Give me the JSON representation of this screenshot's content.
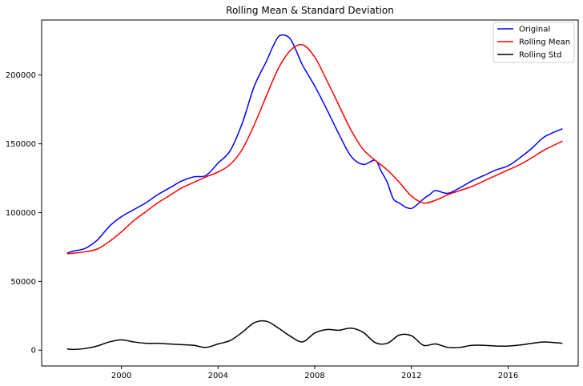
{
  "chart_data": {
    "type": "line",
    "title": "Rolling Mean & Standard Deviation",
    "xlabel": "",
    "ylabel": "",
    "xlim": [
      1996.7,
      2018.9
    ],
    "ylim": [
      -11500,
      240000
    ],
    "xticks": [
      2000,
      2004,
      2008,
      2012,
      2016
    ],
    "yticks": [
      0,
      50000,
      100000,
      150000,
      200000
    ],
    "grid": false,
    "legend_position": "top-right",
    "series": [
      {
        "name": "Original",
        "color": "#0000ff",
        "points": [
          [
            1997.75,
            70500
          ],
          [
            1998.0,
            72000
          ],
          [
            1998.5,
            74000
          ],
          [
            1999.0,
            80000
          ],
          [
            1999.5,
            90000
          ],
          [
            2000.0,
            97000
          ],
          [
            2000.5,
            102000
          ],
          [
            2001.0,
            107000
          ],
          [
            2001.5,
            113000
          ],
          [
            2002.0,
            118000
          ],
          [
            2002.5,
            123000
          ],
          [
            2003.0,
            126000
          ],
          [
            2003.5,
            127000
          ],
          [
            2004.0,
            136000
          ],
          [
            2004.5,
            145000
          ],
          [
            2005.0,
            165000
          ],
          [
            2005.5,
            192000
          ],
          [
            2006.0,
            210000
          ],
          [
            2006.25,
            220000
          ],
          [
            2006.5,
            228000
          ],
          [
            2006.75,
            229000
          ],
          [
            2007.0,
            226000
          ],
          [
            2007.25,
            217000
          ],
          [
            2007.5,
            207000
          ],
          [
            2008.0,
            192000
          ],
          [
            2008.5,
            175000
          ],
          [
            2009.0,
            157000
          ],
          [
            2009.5,
            141000
          ],
          [
            2010.0,
            135000
          ],
          [
            2010.5,
            138000
          ],
          [
            2010.75,
            130000
          ],
          [
            2011.0,
            122000
          ],
          [
            2011.25,
            110000
          ],
          [
            2011.5,
            107000
          ],
          [
            2011.75,
            104000
          ],
          [
            2012.0,
            103000
          ],
          [
            2012.25,
            106000
          ],
          [
            2012.5,
            110000
          ],
          [
            2012.75,
            113000
          ],
          [
            2013.0,
            116000
          ],
          [
            2013.5,
            114000
          ],
          [
            2014.0,
            118000
          ],
          [
            2014.5,
            123000
          ],
          [
            2015.0,
            127000
          ],
          [
            2015.5,
            131000
          ],
          [
            2016.0,
            134000
          ],
          [
            2016.5,
            140000
          ],
          [
            2017.0,
            147000
          ],
          [
            2017.5,
            155000
          ],
          [
            2018.25,
            161000
          ]
        ]
      },
      {
        "name": "Rolling Mean",
        "color": "#ff0000",
        "points": [
          [
            1997.75,
            70000
          ],
          [
            1998.0,
            70500
          ],
          [
            1998.5,
            71500
          ],
          [
            1999.0,
            73500
          ],
          [
            1999.5,
            79000
          ],
          [
            2000.0,
            86000
          ],
          [
            2000.5,
            94000
          ],
          [
            2001.0,
            100500
          ],
          [
            2001.5,
            107000
          ],
          [
            2002.0,
            112500
          ],
          [
            2002.5,
            118000
          ],
          [
            2003.0,
            122000
          ],
          [
            2003.5,
            126000
          ],
          [
            2004.0,
            129500
          ],
          [
            2004.5,
            135000
          ],
          [
            2005.0,
            146000
          ],
          [
            2005.5,
            164000
          ],
          [
            2006.0,
            185000
          ],
          [
            2006.5,
            205000
          ],
          [
            2007.0,
            218000
          ],
          [
            2007.5,
            222000
          ],
          [
            2008.0,
            213000
          ],
          [
            2008.5,
            196000
          ],
          [
            2009.0,
            178000
          ],
          [
            2009.5,
            160000
          ],
          [
            2010.0,
            146000
          ],
          [
            2010.5,
            138000
          ],
          [
            2011.0,
            131000
          ],
          [
            2011.5,
            122000
          ],
          [
            2012.0,
            112000
          ],
          [
            2012.5,
            107000
          ],
          [
            2013.0,
            109000
          ],
          [
            2013.5,
            113000
          ],
          [
            2014.0,
            116000
          ],
          [
            2014.5,
            119000
          ],
          [
            2015.0,
            123000
          ],
          [
            2015.5,
            127000
          ],
          [
            2016.0,
            131000
          ],
          [
            2016.5,
            135000
          ],
          [
            2017.0,
            140000
          ],
          [
            2017.5,
            145500
          ],
          [
            2018.25,
            152000
          ]
        ]
      },
      {
        "name": "Rolling Std",
        "color": "#000000",
        "points": [
          [
            1997.75,
            1000
          ],
          [
            1998.0,
            500
          ],
          [
            1998.5,
            1200
          ],
          [
            1999.0,
            3000
          ],
          [
            1999.5,
            6000
          ],
          [
            2000.0,
            7500
          ],
          [
            2000.5,
            6000
          ],
          [
            2001.0,
            5000
          ],
          [
            2001.5,
            5000
          ],
          [
            2002.0,
            4500
          ],
          [
            2002.5,
            4000
          ],
          [
            2003.0,
            3500
          ],
          [
            2003.5,
            2000
          ],
          [
            2004.0,
            4500
          ],
          [
            2004.5,
            7000
          ],
          [
            2005.0,
            13000
          ],
          [
            2005.5,
            20000
          ],
          [
            2006.0,
            21000
          ],
          [
            2006.5,
            16000
          ],
          [
            2007.0,
            10000
          ],
          [
            2007.5,
            6000
          ],
          [
            2008.0,
            12500
          ],
          [
            2008.5,
            15000
          ],
          [
            2009.0,
            14500
          ],
          [
            2009.5,
            16000
          ],
          [
            2010.0,
            13000
          ],
          [
            2010.5,
            5500
          ],
          [
            2011.0,
            5000
          ],
          [
            2011.5,
            11000
          ],
          [
            2012.0,
            10500
          ],
          [
            2012.5,
            3500
          ],
          [
            2013.0,
            4500
          ],
          [
            2013.5,
            2000
          ],
          [
            2014.0,
            2000
          ],
          [
            2014.5,
            3500
          ],
          [
            2015.0,
            3500
          ],
          [
            2015.5,
            3000
          ],
          [
            2016.0,
            3000
          ],
          [
            2016.5,
            3800
          ],
          [
            2017.0,
            5000
          ],
          [
            2017.5,
            6000
          ],
          [
            2018.25,
            5000
          ]
        ]
      }
    ]
  }
}
